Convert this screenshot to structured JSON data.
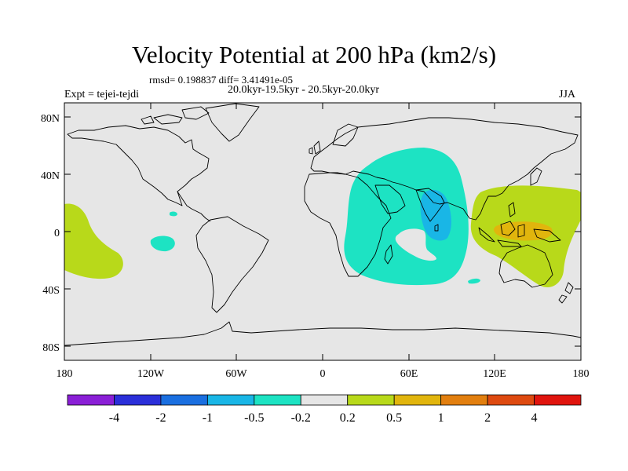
{
  "title": "Velocity Potential at 200 hPa (km2/s)",
  "stats": "rmsd= 0.198837 diff= 3.41491e-05",
  "subtitle": "20.0kyr-19.5kyr - 20.5kyr-20.0kyr",
  "expt": "Expt = tejei-tejdi",
  "season": "JJA",
  "map": {
    "projection": "cylindrical equidistant",
    "lon_range": [
      -180,
      180
    ],
    "lat_range": [
      -90,
      90
    ],
    "background_color": "#e6e6e6"
  },
  "axes": {
    "y_ticks": [
      "80N",
      "40N",
      "0",
      "40S",
      "80S"
    ],
    "x_ticks": [
      "180",
      "120W",
      "60W",
      "0",
      "60E",
      "120E",
      "180"
    ]
  },
  "colorbar": {
    "colors": [
      "#8a1fd6",
      "#2b2fd9",
      "#1a6fe0",
      "#19b6e6",
      "#1de3c3",
      "#e6e6e6",
      "#b8d91a",
      "#e1b50d",
      "#e27f0f",
      "#de4a10",
      "#e0140e"
    ],
    "labels": [
      "-4",
      "-2",
      "-1",
      "-0.5",
      "-0.2",
      "0.2",
      "0.5",
      "1",
      "2",
      "4"
    ]
  }
}
